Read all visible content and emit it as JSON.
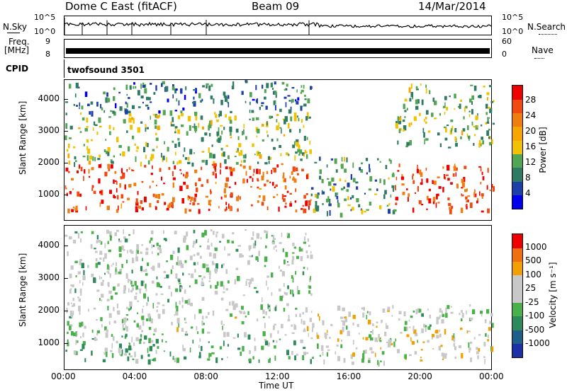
{
  "header": {
    "station": "Dome C East (fitACF)",
    "beam": "Beam 09",
    "date": "14/Mar/2014"
  },
  "top_panels": {
    "nsky_label": "N.Sky",
    "nsky_ticks": [
      "10^5",
      "10^0"
    ],
    "nsearch_label": "N.Search",
    "nsearch_ticks": [
      "10^5",
      "10^0"
    ],
    "freq_label_1": "Freq.",
    "freq_label_2": "[MHz]",
    "freq_ticks": [
      "9",
      "8"
    ],
    "nave_label": "Nave",
    "nave_ticks": [
      "60",
      "0"
    ],
    "cpid_label": "CPID",
    "cpid_value": "twofsound 3501"
  },
  "colors": {
    "power_scale": [
      "#0000ee",
      "#1d3fa8",
      "#2f7a63",
      "#52a552",
      "#f2c200",
      "#f7a600",
      "#f07d10",
      "#f04a10",
      "#ee0000"
    ],
    "velocity_scale": [
      "#1a2fa8",
      "#1e5f8a",
      "#2e8a5a",
      "#4ab04a",
      "#c8c8c8",
      "#c8c8c8",
      "#f2a000",
      "#f07010",
      "#ee0000"
    ]
  },
  "chart_data": [
    {
      "type": "heatmap",
      "title": "",
      "panel": "power",
      "xlabel": "",
      "ylabel": "Slant Range [km]",
      "y_ticks": [
        "1000",
        "2000",
        "3000",
        "4000"
      ],
      "ylim": [
        200,
        4600
      ],
      "x_ticks": [
        "00:00",
        "04:00",
        "08:00",
        "12:00",
        "16:00",
        "20:00",
        "00:00"
      ],
      "xlim_hours": [
        0,
        24
      ],
      "colorbar": {
        "label": "Power [dB]",
        "ticks": [
          "4",
          "8",
          "12",
          "16",
          "20",
          "24",
          "28"
        ],
        "range": [
          0,
          30
        ]
      },
      "regions": [
        {
          "x": [
            0.0,
            13.8
          ],
          "y": [
            500,
            2000
          ],
          "value": 25
        },
        {
          "x": [
            0.0,
            13.8
          ],
          "y": [
            2000,
            3600
          ],
          "value": 12
        },
        {
          "x": [
            0.0,
            13.8
          ],
          "y": [
            3600,
            4600
          ],
          "value": 8
        },
        {
          "x": [
            13.8,
            18.5
          ],
          "y": [
            400,
            2200
          ],
          "value": 10
        },
        {
          "x": [
            18.5,
            24.0
          ],
          "y": [
            500,
            2000
          ],
          "value": 26
        },
        {
          "x": [
            18.5,
            24.0
          ],
          "y": [
            2500,
            4500
          ],
          "value": 12
        }
      ]
    },
    {
      "type": "heatmap",
      "title": "",
      "panel": "velocity",
      "xlabel": "Time UT",
      "ylabel": "Slant Range [km]",
      "y_ticks": [
        "1000",
        "2000",
        "3000",
        "4000"
      ],
      "ylim": [
        200,
        4600
      ],
      "x_ticks": [
        "00:00",
        "04:00",
        "08:00",
        "12:00",
        "16:00",
        "20:00",
        "00:00"
      ],
      "xlim_hours": [
        0,
        24
      ],
      "colorbar": {
        "label": "Velocity [m s⁻¹]",
        "ticks": [
          "1000",
          "500",
          "100",
          "25",
          "-25",
          "-100",
          "-500",
          "-1000"
        ],
        "range": [
          -1000,
          1000
        ]
      },
      "regions": [
        {
          "x": [
            0.0,
            13.8
          ],
          "y": [
            500,
            1300
          ],
          "value": -200
        },
        {
          "x": [
            0.0,
            13.8
          ],
          "y": [
            1300,
            2100
          ],
          "value": 0
        },
        {
          "x": [
            0.0,
            13.8
          ],
          "y": [
            2100,
            4500
          ],
          "value": -50
        },
        {
          "x": [
            13.8,
            18.5
          ],
          "y": [
            400,
            2200
          ],
          "value": 120
        },
        {
          "x": [
            18.5,
            24.0
          ],
          "y": [
            500,
            1500
          ],
          "value": 150
        },
        {
          "x": [
            18.5,
            24.0
          ],
          "y": [
            1500,
            2200
          ],
          "value": 0
        }
      ]
    }
  ]
}
